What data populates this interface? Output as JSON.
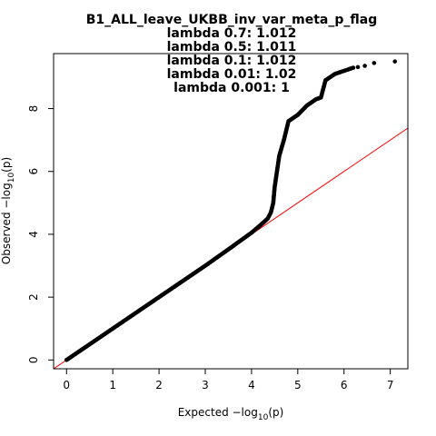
{
  "chart_data": {
    "type": "scatter",
    "title_lines": [
      "B1_ALL_leave_UKBB_inv_var_meta_p_flag",
      "lambda 0.7: 1.012",
      "lambda 0.5: 1.011",
      "lambda 0.1: 1.012",
      "lambda 0.01: 1.02",
      "lambda 0.001: 1"
    ],
    "xlabel": {
      "prefix": "Expected  −log",
      "sub": "10",
      "suffix": "(p)"
    },
    "ylabel": {
      "prefix": "Observed  −log",
      "sub": "10",
      "suffix": "(p)"
    },
    "xlim": [
      -0.28,
      7.38
    ],
    "ylim": [
      -0.28,
      9.75
    ],
    "xticks": [
      0,
      1,
      2,
      3,
      4,
      5,
      6,
      7
    ],
    "yticks": [
      0,
      2,
      4,
      6,
      8
    ],
    "xtick_labels": [
      "0",
      "1",
      "2",
      "3",
      "4",
      "5",
      "6",
      "7"
    ],
    "ytick_labels": [
      "0",
      "2",
      "4",
      "6",
      "8"
    ],
    "reference_line": {
      "slope": 1,
      "intercept": 0,
      "color": "#ff0000"
    },
    "point_color": "#000000",
    "observed_curve": [
      [
        0.0,
        0.0
      ],
      [
        3.0,
        3.0
      ],
      [
        3.5,
        3.52
      ],
      [
        4.0,
        4.05
      ],
      [
        4.2,
        4.3
      ],
      [
        4.35,
        4.5
      ],
      [
        4.42,
        4.7
      ],
      [
        4.47,
        5.0
      ],
      [
        4.5,
        5.5
      ],
      [
        4.55,
        6.0
      ],
      [
        4.6,
        6.5
      ],
      [
        4.7,
        7.0
      ],
      [
        4.8,
        7.6
      ],
      [
        5.0,
        7.8
      ],
      [
        5.2,
        8.1
      ],
      [
        5.4,
        8.3
      ],
      [
        5.5,
        8.35
      ],
      [
        5.6,
        8.9
      ],
      [
        5.8,
        9.1
      ],
      [
        6.0,
        9.2
      ],
      [
        6.2,
        9.3
      ]
    ],
    "tail_points": [
      [
        6.3,
        9.32
      ],
      [
        6.45,
        9.36
      ],
      [
        6.65,
        9.45
      ],
      [
        7.1,
        9.5
      ]
    ]
  }
}
